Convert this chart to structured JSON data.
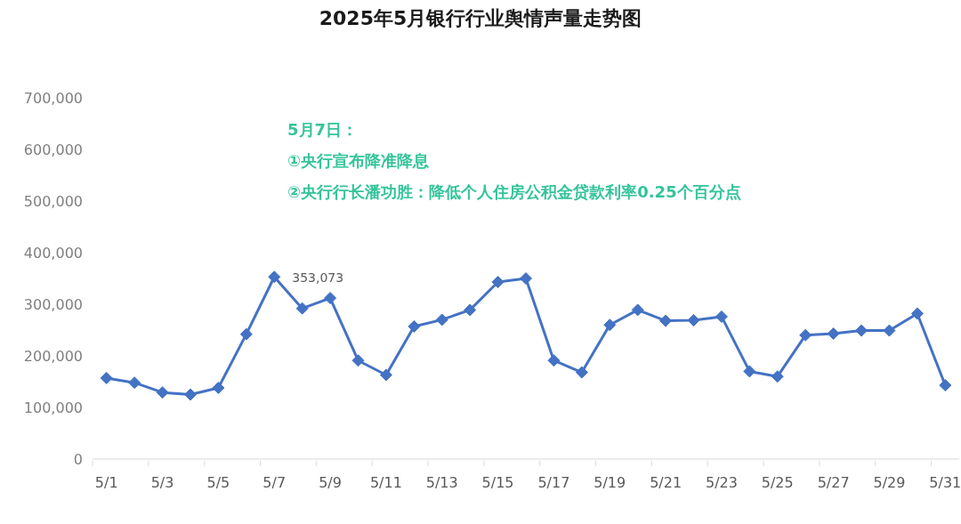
{
  "chart_data": {
    "type": "line",
    "title": "2025年5月银行行业舆情声量走势图",
    "categories": [
      "5/1",
      null,
      "5/3",
      null,
      "5/5",
      null,
      "5/7",
      null,
      "5/9",
      null,
      "5/11",
      null,
      "5/13",
      null,
      "5/15",
      null,
      "5/17",
      null,
      "5/19",
      null,
      "5/21",
      null,
      "5/23",
      null,
      "5/25",
      null,
      "5/27",
      null,
      "5/29",
      null,
      "5/31"
    ],
    "values": [
      157000,
      148000,
      129000,
      125000,
      138000,
      242000,
      353073,
      292000,
      312000,
      191000,
      163000,
      257000,
      270000,
      289000,
      343000,
      350000,
      191000,
      168000,
      260000,
      289000,
      268000,
      269000,
      276000,
      170000,
      160000,
      240000,
      243000,
      249000,
      249000,
      282000,
      143000
    ],
    "value_labels": [
      null,
      null,
      null,
      null,
      null,
      null,
      "353,073",
      null,
      null,
      null,
      null,
      null,
      null,
      null,
      null,
      null,
      null,
      null,
      null,
      null,
      null,
      null,
      null,
      null,
      null,
      null,
      null,
      null,
      null,
      null,
      null
    ],
    "color": "#4472c4",
    "marker": "diamond",
    "line_style": "solid",
    "ylim": [
      0,
      700000
    ],
    "yticks": [
      0,
      {
        "value": 100000,
        "label": "100,000"
      },
      {
        "value": 200000,
        "label": "200,000"
      },
      {
        "value": 300000,
        "label": "300,000"
      },
      {
        "value": 400000,
        "label": "400,000"
      },
      {
        "value": 500000,
        "label": "500,000"
      },
      {
        "value": 600000,
        "label": "600,000"
      },
      {
        "value": 700000,
        "label": "700,000"
      }
    ],
    "annotations": [
      "5月7日：",
      "①央行宣布降准降息",
      "②央行行长潘功胜：降低个人住房公积金贷款利率0.25个百分点"
    ]
  }
}
